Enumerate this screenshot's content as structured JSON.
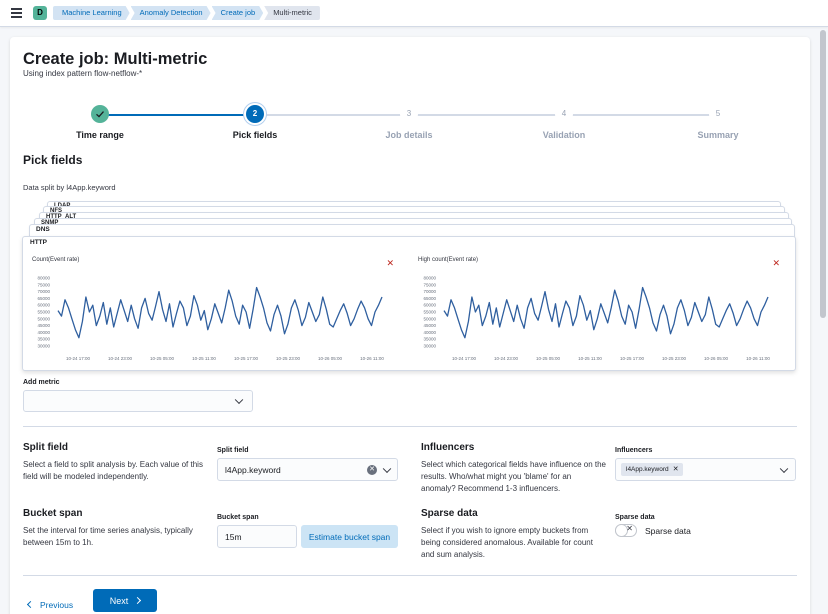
{
  "header": {
    "space_initial": "D",
    "breadcrumbs": [
      "Machine Learning",
      "Anomaly Detection",
      "Create job",
      "Multi-metric"
    ]
  },
  "page": {
    "title": "Create job: Multi-metric",
    "subtitle": "Using index pattern flow-netflow-*"
  },
  "steps": [
    {
      "number": "1",
      "label": "Time range",
      "state": "complete",
      "icon": "check-icon"
    },
    {
      "number": "2",
      "label": "Pick fields",
      "state": "current"
    },
    {
      "number": "3",
      "label": "Job details",
      "state": "todo"
    },
    {
      "number": "4",
      "label": "Validation",
      "state": "todo"
    },
    {
      "number": "5",
      "label": "Summary",
      "state": "todo"
    }
  ],
  "pick_fields": {
    "title": "Pick fields",
    "split_note": "Data split by l4App.keyword",
    "stacked_labels": [
      "HTTP",
      "DNS",
      "SNMP",
      "HTTP_ALT",
      "NFS",
      "LDAP"
    ],
    "front_label": "HTTP"
  },
  "charts": {
    "left": {
      "title": "Count(Event rate)",
      "close_icon": "close-icon"
    },
    "right": {
      "title": "High count(Event rate)",
      "close_icon": "close-icon"
    }
  },
  "chart_data": [
    {
      "type": "line",
      "title": "Count(Event rate)",
      "yticks": [
        "80000",
        "75000",
        "70000",
        "65000",
        "60000",
        "55000",
        "50000",
        "45000",
        "40000",
        "35000",
        "30000"
      ],
      "ylim": [
        30000,
        80000
      ],
      "xticks": [
        "10-24 17:00",
        "10-24 23:00",
        "10-25 05:00",
        "10-25 11:00",
        "10-25 17:00",
        "10-25 23:00",
        "10-26 05:00",
        "10-26 11:00"
      ],
      "values": [
        56000,
        52000,
        64000,
        58000,
        50000,
        42000,
        36000,
        48000,
        66000,
        55000,
        60000,
        45000,
        52000,
        62000,
        46000,
        58000,
        44000,
        54000,
        64000,
        56000,
        48000,
        60000,
        50000,
        43000,
        58000,
        65000,
        54000,
        49000,
        59000,
        70000,
        57000,
        48000,
        61000,
        44000,
        54000,
        63000,
        58000,
        45000,
        52000,
        67000,
        60000,
        49000,
        56000,
        42000,
        50000,
        61000,
        54000,
        47000,
        58000,
        71000,
        63000,
        52000,
        46000,
        60000,
        55000,
        43000,
        57000,
        73000,
        66000,
        58000,
        47000,
        41000,
        53000,
        60000,
        52000,
        39000,
        46000,
        58000,
        64000,
        56000,
        45000,
        51000,
        62000,
        55000,
        48000,
        53000,
        66000,
        57000,
        46000,
        44000,
        50000,
        56000,
        61000,
        54000,
        45000,
        50000,
        57000,
        63000,
        58000,
        50000,
        45000,
        55000,
        60000,
        66000
      ]
    },
    {
      "type": "line",
      "title": "High count(Event rate)",
      "yticks": [
        "80000",
        "75000",
        "70000",
        "65000",
        "60000",
        "55000",
        "50000",
        "45000",
        "40000",
        "35000",
        "30000"
      ],
      "ylim": [
        30000,
        80000
      ],
      "xticks": [
        "10-24 17:00",
        "10-24 23:00",
        "10-25 05:00",
        "10-25 11:00",
        "10-25 17:00",
        "10-25 23:00",
        "10-26 05:00",
        "10-26 11:00"
      ],
      "values": [
        56000,
        52000,
        64000,
        58000,
        50000,
        42000,
        36000,
        48000,
        66000,
        55000,
        60000,
        45000,
        52000,
        62000,
        46000,
        58000,
        44000,
        54000,
        64000,
        56000,
        48000,
        60000,
        50000,
        43000,
        58000,
        65000,
        54000,
        49000,
        59000,
        70000,
        57000,
        48000,
        61000,
        44000,
        54000,
        63000,
        58000,
        45000,
        52000,
        67000,
        60000,
        49000,
        56000,
        42000,
        50000,
        61000,
        54000,
        47000,
        58000,
        71000,
        63000,
        52000,
        46000,
        60000,
        55000,
        43000,
        57000,
        73000,
        66000,
        58000,
        47000,
        41000,
        53000,
        60000,
        52000,
        39000,
        46000,
        58000,
        64000,
        56000,
        45000,
        51000,
        62000,
        55000,
        48000,
        53000,
        66000,
        57000,
        46000,
        44000,
        50000,
        56000,
        61000,
        54000,
        45000,
        50000,
        57000,
        63000,
        58000,
        50000,
        45000,
        55000,
        60000,
        66000
      ]
    }
  ],
  "add_metric": {
    "label": "Add metric",
    "value": ""
  },
  "split_field": {
    "heading": "Split field",
    "description": "Select a field to split analysis by. Each value of this field will be modeled independently.",
    "label": "Split field",
    "value": "l4App.keyword"
  },
  "influencers": {
    "heading": "Influencers",
    "description": "Select which categorical fields have influence on the results. Who/what might you 'blame' for an anomaly? Recommend 1-3 influencers.",
    "label": "Influencers",
    "selected": [
      "l4App.keyword"
    ]
  },
  "bucket_span": {
    "heading": "Bucket span",
    "description": "Set the interval for time series analysis, typically between 15m to 1h.",
    "label": "Bucket span",
    "value": "15m",
    "estimate_label": "Estimate bucket span"
  },
  "sparse_data": {
    "heading": "Sparse data",
    "description": "Select if you wish to ignore empty buckets from being considered anomalous. Available for count and sum analysis.",
    "label": "Sparse data",
    "switch_label": "Sparse data",
    "enabled": false
  },
  "footer": {
    "previous_label": "Previous",
    "next_label": "Next"
  },
  "colors": {
    "primary": "#006bb8",
    "success": "#54b399",
    "danger": "#bd271e"
  }
}
